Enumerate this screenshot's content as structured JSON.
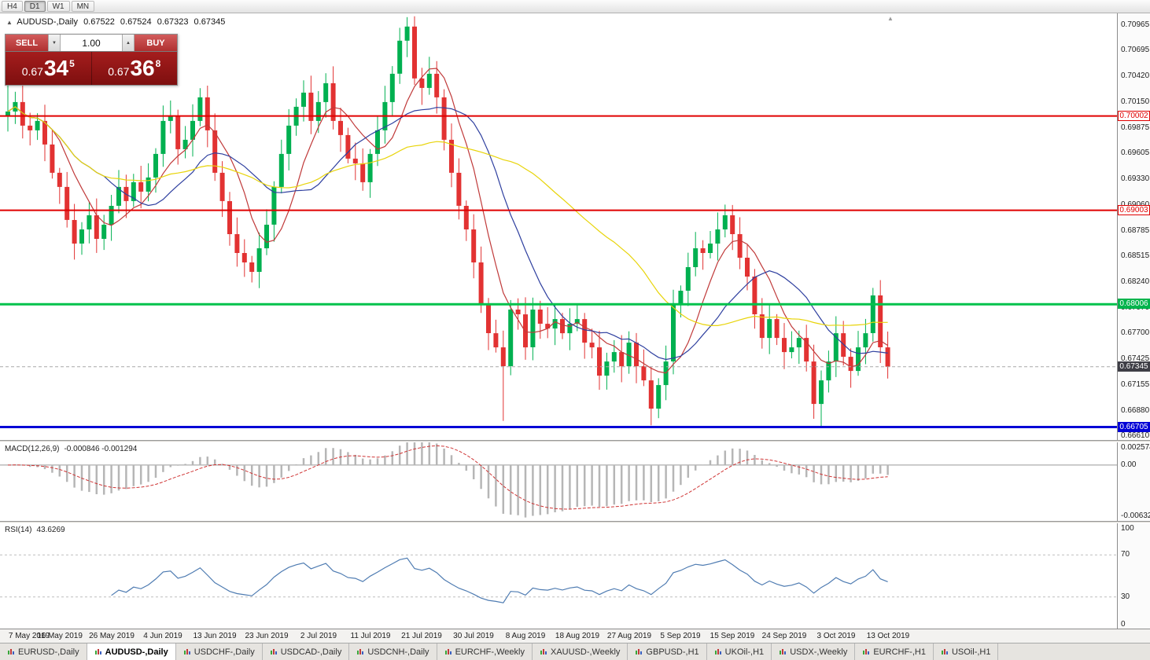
{
  "toolbar": {
    "timeframes": [
      {
        "label": "H4",
        "active": false
      },
      {
        "label": "D1",
        "active": true
      },
      {
        "label": "W1",
        "active": false
      },
      {
        "label": "MN",
        "active": false
      }
    ]
  },
  "chart_header": {
    "symbol": "AUDUSD-,Daily",
    "open": "0.67522",
    "high": "0.67524",
    "low": "0.67323",
    "close": "0.67345"
  },
  "trade_panel": {
    "sell_label": "SELL",
    "buy_label": "BUY",
    "volume": "1.00",
    "sell_price": {
      "prefix": "0.67",
      "big": "34",
      "sup": "5"
    },
    "buy_price": {
      "prefix": "0.67",
      "big": "36",
      "sup": "8"
    }
  },
  "price_axis": {
    "ticks": [
      "0.70965",
      "0.70695",
      "0.70420",
      "0.70150",
      "0.69875",
      "0.69605",
      "0.69330",
      "0.69060",
      "0.68785",
      "0.68515",
      "0.68240",
      "0.67970",
      "0.67700",
      "0.67425",
      "0.67155",
      "0.66880",
      "0.66610"
    ],
    "tags": [
      {
        "text": "0.70002",
        "price": 0.70002,
        "style": "red-outline"
      },
      {
        "text": "0.69003",
        "price": 0.69003,
        "style": "red-outline"
      },
      {
        "text": "0.68006",
        "price": 0.68006,
        "style": "green"
      },
      {
        "text": "0.67345",
        "price": 0.67345,
        "style": "dark"
      },
      {
        "text": "0.66705",
        "price": 0.66705,
        "style": "blue"
      }
    ]
  },
  "macd": {
    "name": "MACD(12,26,9)",
    "values": "-0.000846 -0.001294",
    "axis_top": "0.002574",
    "axis_zero": "0.00",
    "axis_bottom": "-0.006326"
  },
  "rsi": {
    "name": "RSI(14)",
    "value": "43.6269",
    "axis": [
      "100",
      "70",
      "30",
      "0"
    ]
  },
  "date_axis": [
    "7 May 2019",
    "16 May 2019",
    "26 May 2019",
    "4 Jun 2019",
    "13 Jun 2019",
    "23 Jun 2019",
    "2 Jul 2019",
    "11 Jul 2019",
    "21 Jul 2019",
    "30 Jul 2019",
    "8 Aug 2019",
    "18 Aug 2019",
    "27 Aug 2019",
    "5 Sep 2019",
    "15 Sep 2019",
    "24 Sep 2019",
    "3 Oct 2019",
    "13 Oct 2019"
  ],
  "tabs": [
    {
      "label": "EURUSD-,Daily",
      "active": false
    },
    {
      "label": "AUDUSD-,Daily",
      "active": true
    },
    {
      "label": "USDCHF-,Daily",
      "active": false
    },
    {
      "label": "USDCAD-,Daily",
      "active": false
    },
    {
      "label": "USDCNH-,Daily",
      "active": false
    },
    {
      "label": "EURCHF-,Weekly",
      "active": false
    },
    {
      "label": "XAUUSD-,Weekly",
      "active": false
    },
    {
      "label": "GBPUSD-,H1",
      "active": false
    },
    {
      "label": "UKOil-,H1",
      "active": false
    },
    {
      "label": "USDX-,Weekly",
      "active": false
    },
    {
      "label": "EURCHF-,H1",
      "active": false
    },
    {
      "label": "USOil-,H1",
      "active": false
    }
  ],
  "colors": {
    "bull": "#00b050",
    "bear": "#e23232",
    "level_red": "#e00000",
    "level_green": "#00c24b",
    "level_blue": "#0000d6",
    "ma_fast": "#c03a3a",
    "ma_mid": "#2e3f9f",
    "ma_slow": "#e8d40a",
    "macd_hist": "#b6b6b6",
    "macd_signal": "#cf3434",
    "rsi_line": "#4f7cb2"
  },
  "chart_data": {
    "type": "candlestick",
    "symbol": "AUDUSD-",
    "timeframe": "Daily",
    "price_range": {
      "top": 0.7109,
      "bottom": 0.66568
    },
    "first_open": 0.7,
    "closes": [
      0.7005,
      0.7015,
      0.699,
      0.6985,
      0.6995,
      0.697,
      0.694,
      0.6925,
      0.689,
      0.6865,
      0.688,
      0.6895,
      0.687,
      0.6885,
      0.6905,
      0.6925,
      0.691,
      0.693,
      0.692,
      0.6935,
      0.696,
      0.6995,
      0.7,
      0.6965,
      0.6975,
      0.6995,
      0.702,
      0.6985,
      0.694,
      0.691,
      0.6875,
      0.6855,
      0.6845,
      0.6835,
      0.686,
      0.6885,
      0.6925,
      0.696,
      0.699,
      0.701,
      0.7025,
      0.6995,
      0.7015,
      0.7035,
      0.6995,
      0.698,
      0.6955,
      0.695,
      0.693,
      0.696,
      0.6985,
      0.7015,
      0.7045,
      0.708,
      0.7095,
      0.704,
      0.703,
      0.7045,
      0.702,
      0.6975,
      0.694,
      0.6905,
      0.688,
      0.6845,
      0.68,
      0.677,
      0.6755,
      0.6735,
      0.6795,
      0.679,
      0.6755,
      0.6795,
      0.678,
      0.6775,
      0.6785,
      0.677,
      0.678,
      0.6785,
      0.676,
      0.6755,
      0.6725,
      0.674,
      0.675,
      0.6735,
      0.676,
      0.6735,
      0.672,
      0.669,
      0.6715,
      0.674,
      0.68,
      0.6815,
      0.684,
      0.686,
      0.6855,
      0.6865,
      0.688,
      0.6895,
      0.6875,
      0.685,
      0.683,
      0.679,
      0.6765,
      0.6785,
      0.6765,
      0.675,
      0.6755,
      0.6765,
      0.674,
      0.6695,
      0.672,
      0.674,
      0.677,
      0.6745,
      0.673,
      0.6755,
      0.677,
      0.681,
      0.6755,
      0.67345
    ],
    "wick_overrides": {
      "0": {
        "high": 0.7042
      },
      "54": {
        "high": 0.7105
      },
      "67": {
        "low": 0.6677
      },
      "110": {
        "low": 0.66705
      },
      "117": {
        "high": 0.6818
      }
    },
    "levels": [
      {
        "price": 0.70002,
        "color": "#e00000",
        "width": 2
      },
      {
        "price": 0.69003,
        "color": "#e00000",
        "width": 2
      },
      {
        "price": 0.68006,
        "color": "#00c24b",
        "width": 3
      },
      {
        "price": 0.66705,
        "color": "#0000d6",
        "width": 3
      }
    ],
    "current_price": 0.67345,
    "ma": [
      {
        "period": 7,
        "color": "#c03a3a"
      },
      {
        "period": 14,
        "color": "#2e3f9f"
      },
      {
        "period": 34,
        "color": "#e8d40a"
      }
    ],
    "macd_scale": {
      "top": 0.002574,
      "bottom": -0.006326
    },
    "rsi_levels": [
      70,
      30
    ],
    "date_label_bars": [
      0,
      7,
      14,
      21,
      28,
      35,
      42,
      49,
      56,
      63,
      70,
      77,
      84,
      91,
      98,
      105,
      112,
      119
    ]
  }
}
